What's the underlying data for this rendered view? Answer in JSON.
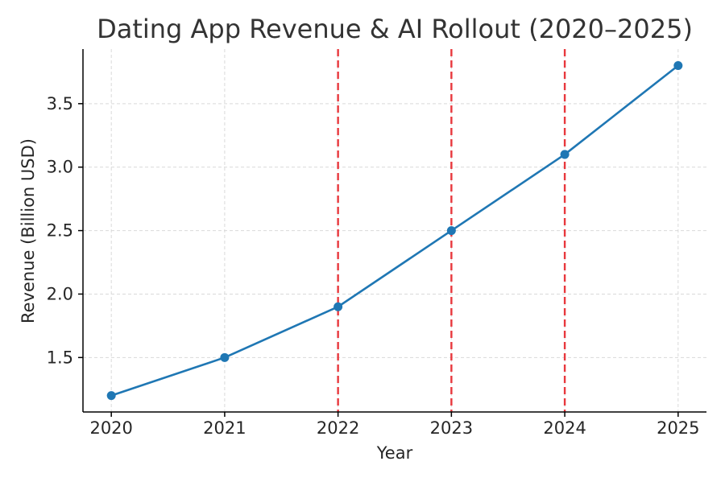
{
  "chart_data": {
    "type": "line",
    "title": "Dating App Revenue & AI Rollout (2020–2025)",
    "xlabel": "Year",
    "ylabel": "Revenue (Billion USD)",
    "x": [
      2020,
      2021,
      2022,
      2023,
      2024,
      2025
    ],
    "x_tick_labels": [
      "2020",
      "2021",
      "2022",
      "2023",
      "2024",
      "2025"
    ],
    "series": [
      {
        "values": [
          1.2,
          1.5,
          1.9,
          2.5,
          3.1,
          3.8
        ],
        "color": "#1f77b4",
        "marker": "circle"
      }
    ],
    "y_ticks": [
      1.5,
      2.0,
      2.5,
      3.0,
      3.5
    ],
    "y_tick_labels": [
      "1.5",
      "2.0",
      "2.5",
      "3.0",
      "3.5"
    ],
    "xlim": [
      2019.75,
      2025.25
    ],
    "ylim": [
      1.071,
      3.93
    ],
    "vertical_markers": {
      "x": [
        2022,
        2023,
        2024
      ],
      "color": "#e8383d",
      "style": "dashed"
    },
    "grid": true,
    "grid_style": "dashed"
  }
}
